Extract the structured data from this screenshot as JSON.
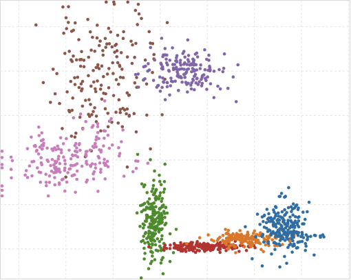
{
  "chart_data": {
    "type": "scatter",
    "title": "",
    "xlabel": "",
    "ylabel": "",
    "xlim": [
      0,
      7.45
    ],
    "ylim": [
      0,
      6.3
    ],
    "grid": true,
    "xgrid": [
      0.4,
      1.4,
      2.4,
      3.4,
      4.4,
      5.4,
      6.4,
      7.4
    ],
    "ygrid": [
      0.7,
      1.7,
      2.7,
      3.7,
      4.7,
      5.7
    ],
    "series": [
      {
        "color": "#8c564b",
        "center": [
          2.1,
          4.45
        ],
        "spread": [
          0.5,
          0.75
        ],
        "n": 150,
        "seed": 11
      },
      {
        "color": "#8c564b",
        "center": [
          2.3,
          5.3
        ],
        "spread": [
          0.5,
          0.6
        ],
        "n": 30,
        "seed": 12
      },
      {
        "color": "#8065a9",
        "center": [
          3.9,
          4.7
        ],
        "spread": [
          0.45,
          0.28
        ],
        "n": 170,
        "seed": 21
      },
      {
        "color": "#c77ebb",
        "center": [
          1.35,
          2.65
        ],
        "spread": [
          0.62,
          0.32
        ],
        "n": 170,
        "seed": 31
      },
      {
        "color": "#c77ebb",
        "center": [
          2.2,
          3.2
        ],
        "spread": [
          0.35,
          0.35
        ],
        "n": 30,
        "seed": 32
      },
      {
        "color": "#4e8a2e",
        "center": [
          3.28,
          1.38
        ],
        "spread": [
          0.14,
          0.52
        ],
        "n": 210,
        "seed": 41
      },
      {
        "color": "#b13431",
        "center": [
          4.25,
          0.74
        ],
        "spread": [
          0.4,
          0.05
        ],
        "n": 180,
        "seed": 51
      },
      {
        "color": "#d9772b",
        "center": [
          5.15,
          0.92
        ],
        "spread": [
          0.45,
          0.09
        ],
        "n": 160,
        "seed": 61
      },
      {
        "color": "#2f6da3",
        "center": [
          6.05,
          1.2
        ],
        "spread": [
          0.28,
          0.3
        ],
        "n": 210,
        "seed": 71
      },
      {
        "color": "#2f6da3",
        "center": [
          6.5,
          0.98
        ],
        "spread": [
          0.35,
          0.03
        ],
        "n": 12,
        "seed": 72
      }
    ]
  }
}
